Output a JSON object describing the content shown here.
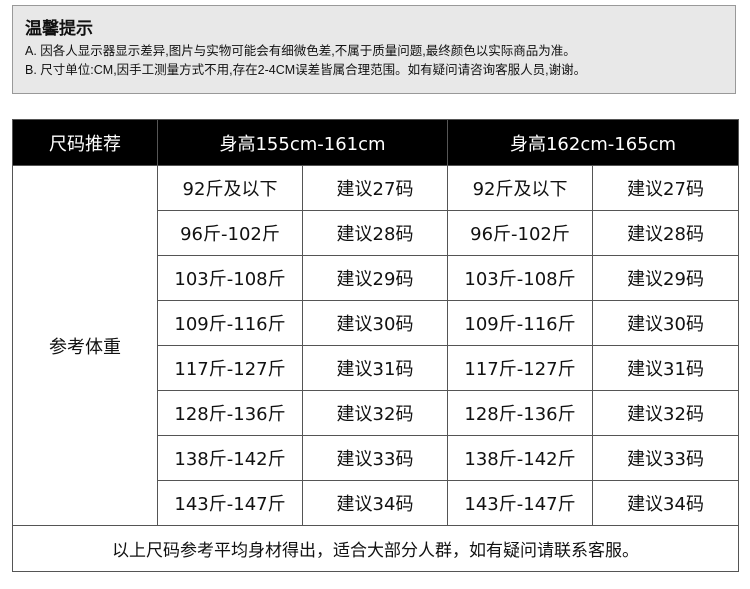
{
  "notice": {
    "title": "温馨提示",
    "lines": [
      "A. 因各人显示器显示差异,图片与实物可能会有细微色差,不属于质量问题,最终颜色以实际商品为准。",
      "B. 尺寸单位:CM,因手工测量方式不用,存在2-4CM误差皆属合理范围。如有疑问请咨询客服人员,谢谢。"
    ]
  },
  "table": {
    "headers": [
      "尺码推荐",
      "身高155cm-161cm",
      "身高162cm-165cm"
    ],
    "row_label": "参考体重",
    "rows": [
      [
        "92斤及以下",
        "建议27码",
        "92斤及以下",
        "建议27码"
      ],
      [
        "96斤-102斤",
        "建议28码",
        "96斤-102斤",
        "建议28码"
      ],
      [
        "103斤-108斤",
        "建议29码",
        "103斤-108斤",
        "建议29码"
      ],
      [
        "109斤-116斤",
        "建议30码",
        "109斤-116斤",
        "建议30码"
      ],
      [
        "117斤-127斤",
        "建议31码",
        "117斤-127斤",
        "建议31码"
      ],
      [
        "128斤-136斤",
        "建议32码",
        "128斤-136斤",
        "建议32码"
      ],
      [
        "138斤-142斤",
        "建议33码",
        "138斤-142斤",
        "建议33码"
      ],
      [
        "143斤-147斤",
        "建议34码",
        "143斤-147斤",
        "建议34码"
      ]
    ],
    "footer": "以上尺码参考平均身材得出，适合大部分人群，如有疑问请联系客服。"
  }
}
